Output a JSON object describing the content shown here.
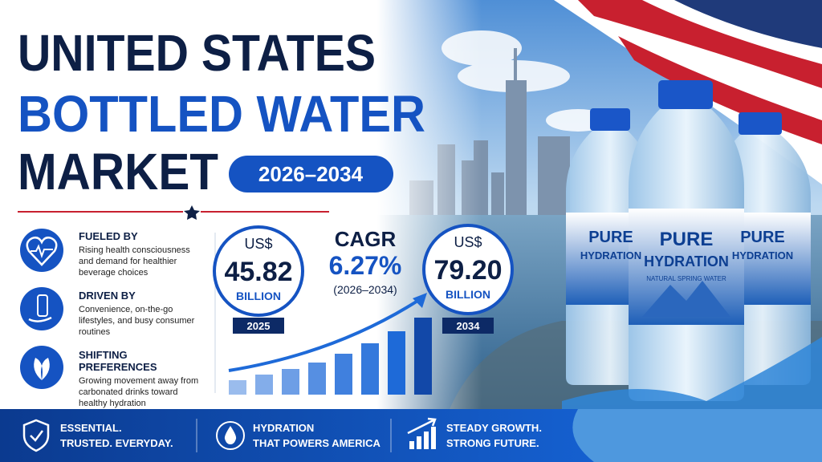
{
  "header": {
    "title_lines": [
      "UNITED STATES",
      "BOTTLED WATER",
      "MARKET"
    ],
    "period": "2026–2034"
  },
  "drivers": [
    {
      "heading": "FUELED BY",
      "text": "Rising health consciousness and demand for healthier beverage choices"
    },
    {
      "heading": "DRIVEN BY",
      "text": "Convenience, on-the-go lifestyles, and busy consumer routines"
    },
    {
      "heading": "SHIFTING PREFERENCES",
      "text": "Growing movement away from carbonated drinks toward healthy hydration"
    }
  ],
  "stats": {
    "start": {
      "currency": "US$",
      "value": "45.82",
      "unit": "BILLION",
      "year": "2025"
    },
    "cagr": {
      "label": "CAGR",
      "value": "6.27%",
      "period": "(2026–2034)"
    },
    "end": {
      "currency": "US$",
      "value": "79.20",
      "unit": "BILLION",
      "year": "2034"
    }
  },
  "bottle_label": {
    "brand_top": "PURE",
    "brand_bottom": "HYDRATION",
    "tagline": "NATURAL SPRING WATER"
  },
  "footer": [
    {
      "line1": "ESSENTIAL.",
      "line2": "TRUSTED. EVERYDAY."
    },
    {
      "line1": "HYDRATION",
      "line2": "THAT POWERS AMERICA"
    },
    {
      "line1": "STEADY GROWTH.",
      "line2": "STRONG FUTURE."
    }
  ]
}
